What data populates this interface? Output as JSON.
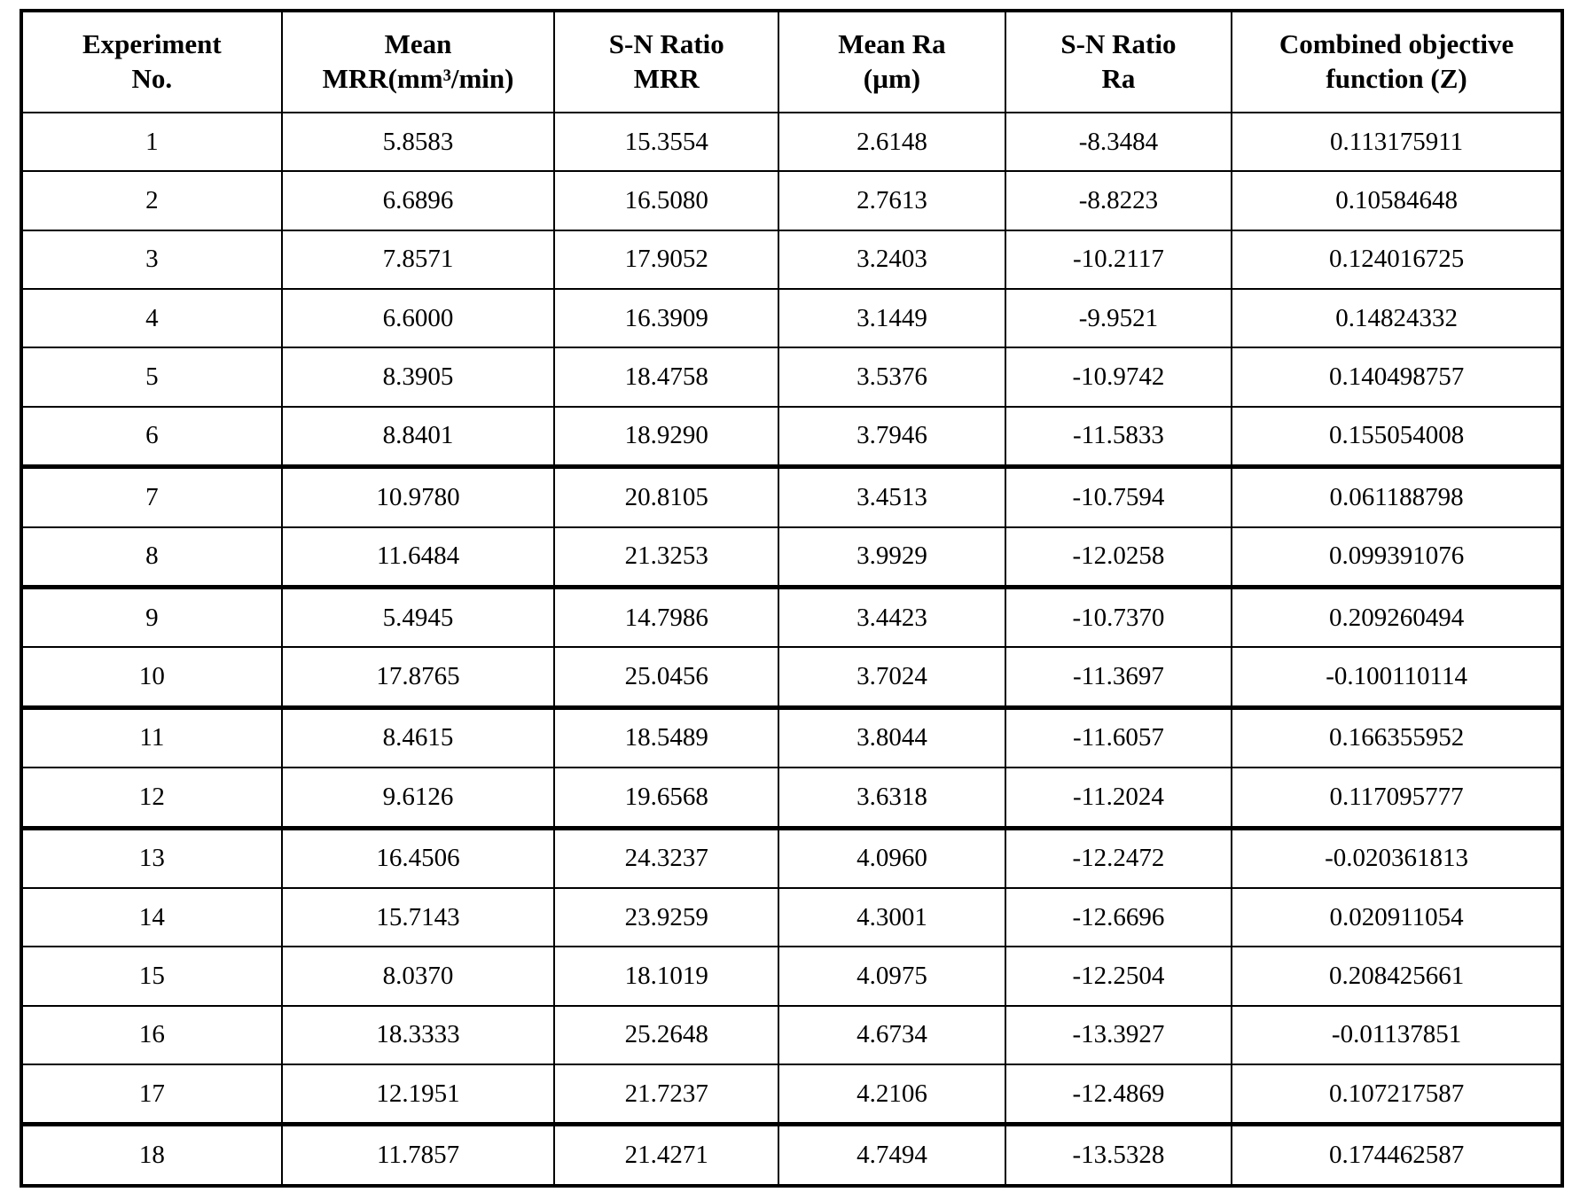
{
  "table": {
    "columns": [
      "Experiment\nNo.",
      "Mean\nMRR(mm³/min)",
      "S-N Ratio\nMRR",
      "Mean Ra\n(µm)",
      "S-N Ratio\nRa",
      "Combined objective\nfunction (Z)"
    ],
    "rows": [
      [
        "1",
        "5.8583",
        "15.3554",
        "2.6148",
        "-8.3484",
        "0.113175911"
      ],
      [
        "2",
        "6.6896",
        "16.5080",
        "2.7613",
        "-8.8223",
        "0.10584648"
      ],
      [
        "3",
        "7.8571",
        "17.9052",
        "3.2403",
        "-10.2117",
        "0.124016725"
      ],
      [
        "4",
        "6.6000",
        "16.3909",
        "3.1449",
        "-9.9521",
        "0.14824332"
      ],
      [
        "5",
        "8.3905",
        "18.4758",
        "3.5376",
        "-10.9742",
        "0.140498757"
      ],
      [
        "6",
        "8.8401",
        "18.9290",
        "3.7946",
        "-11.5833",
        "0.155054008"
      ],
      [
        "7",
        "10.9780",
        "20.8105",
        "3.4513",
        "-10.7594",
        "0.061188798"
      ],
      [
        "8",
        "11.6484",
        "21.3253",
        "3.9929",
        "-12.0258",
        "0.099391076"
      ],
      [
        "9",
        "5.4945",
        "14.7986",
        "3.4423",
        "-10.7370",
        "0.209260494"
      ],
      [
        "10",
        "17.8765",
        "25.0456",
        "3.7024",
        "-11.3697",
        "-0.100110114"
      ],
      [
        "11",
        "8.4615",
        "18.5489",
        "3.8044",
        "-11.6057",
        "0.166355952"
      ],
      [
        "12",
        "9.6126",
        "19.6568",
        "3.6318",
        "-11.2024",
        "0.117095777"
      ],
      [
        "13",
        "16.4506",
        "24.3237",
        "4.0960",
        "-12.2472",
        "-0.020361813"
      ],
      [
        "14",
        "15.7143",
        "23.9259",
        "4.3001",
        "-12.6696",
        "0.020911054"
      ],
      [
        "15",
        "8.0370",
        "18.1019",
        "4.0975",
        "-12.2504",
        "0.208425661"
      ],
      [
        "16",
        "18.3333",
        "25.2648",
        "4.6734",
        "-13.3927",
        "-0.01137851"
      ],
      [
        "17",
        "12.1951",
        "21.7237",
        "4.2106",
        "-12.4869",
        "0.107217587"
      ],
      [
        "18",
        "11.7857",
        "21.4271",
        "4.7494",
        "-13.5328",
        "0.174462587"
      ]
    ]
  },
  "chart_data": {
    "type": "table",
    "title": "",
    "columns": [
      "Experiment No.",
      "Mean MRR(mm³/min)",
      "S-N Ratio MRR",
      "Mean Ra (µm)",
      "S-N Ratio Ra",
      "Combined objective function (Z)"
    ],
    "experiment_no": [
      1,
      2,
      3,
      4,
      5,
      6,
      7,
      8,
      9,
      10,
      11,
      12,
      13,
      14,
      15,
      16,
      17,
      18
    ],
    "mean_mrr": [
      5.8583,
      6.6896,
      7.8571,
      6.6,
      8.3905,
      8.8401,
      10.978,
      11.6484,
      5.4945,
      17.8765,
      8.4615,
      9.6126,
      16.4506,
      15.7143,
      8.037,
      18.3333,
      12.1951,
      11.7857
    ],
    "sn_ratio_mrr": [
      15.3554,
      16.508,
      17.9052,
      16.3909,
      18.4758,
      18.929,
      20.8105,
      21.3253,
      14.7986,
      25.0456,
      18.5489,
      19.6568,
      24.3237,
      23.9259,
      18.1019,
      25.2648,
      21.7237,
      21.4271
    ],
    "mean_ra": [
      2.6148,
      2.7613,
      3.2403,
      3.1449,
      3.5376,
      3.7946,
      3.4513,
      3.9929,
      3.4423,
      3.7024,
      3.8044,
      3.6318,
      4.096,
      4.3001,
      4.0975,
      4.6734,
      4.2106,
      4.7494
    ],
    "sn_ratio_ra": [
      -8.3484,
      -8.8223,
      -10.2117,
      -9.9521,
      -10.9742,
      -11.5833,
      -10.7594,
      -12.0258,
      -10.737,
      -11.3697,
      -11.6057,
      -11.2024,
      -12.2472,
      -12.6696,
      -12.2504,
      -13.3927,
      -12.4869,
      -13.5328
    ],
    "combined_objective_z": [
      0.113175911,
      0.10584648,
      0.124016725,
      0.14824332,
      0.140498757,
      0.155054008,
      0.061188798,
      0.099391076,
      0.209260494,
      -0.100110114,
      0.166355952,
      0.117095777,
      -0.020361813,
      0.020911054,
      0.208425661,
      -0.01137851,
      0.107217587,
      0.174462587
    ]
  }
}
